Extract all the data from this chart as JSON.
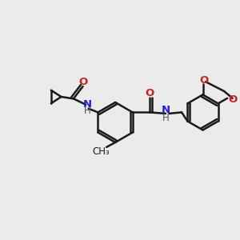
{
  "background_color": "#ebebeb",
  "bond_color": "#1a1a1a",
  "N_color": "#2222cc",
  "O_color": "#cc2222",
  "H_color": "#555555",
  "text_color": "#1a1a1a",
  "line_width": 1.8,
  "font_size": 8.5,
  "figsize": [
    3.0,
    3.0
  ],
  "dpi": 100,
  "xlim": [
    0,
    10
  ],
  "ylim": [
    0,
    10
  ]
}
